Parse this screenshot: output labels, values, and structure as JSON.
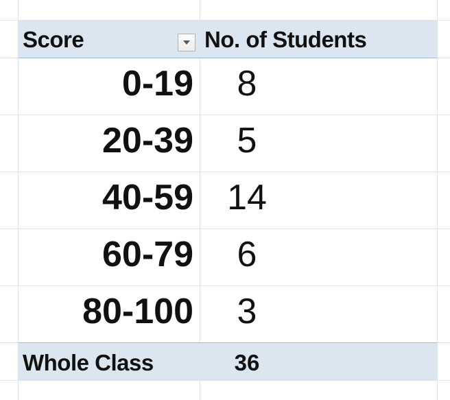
{
  "pivot": {
    "header": {
      "score_label": "Score",
      "count_label": "No. of Students"
    },
    "rows": [
      {
        "score": "0-19",
        "count": "8"
      },
      {
        "score": "20-39",
        "count": "5"
      },
      {
        "score": "40-59",
        "count": "14"
      },
      {
        "score": "60-79",
        "count": "6"
      },
      {
        "score": "80-100",
        "count": "3"
      }
    ],
    "total": {
      "label": "Whole Class",
      "value": "36"
    }
  },
  "colors": {
    "header_fill": "#dce6f1",
    "header_border": "#9bb7d7",
    "gridline": "#e2e2e2"
  },
  "icons": {
    "filter": "dropdown-arrow-icon"
  }
}
